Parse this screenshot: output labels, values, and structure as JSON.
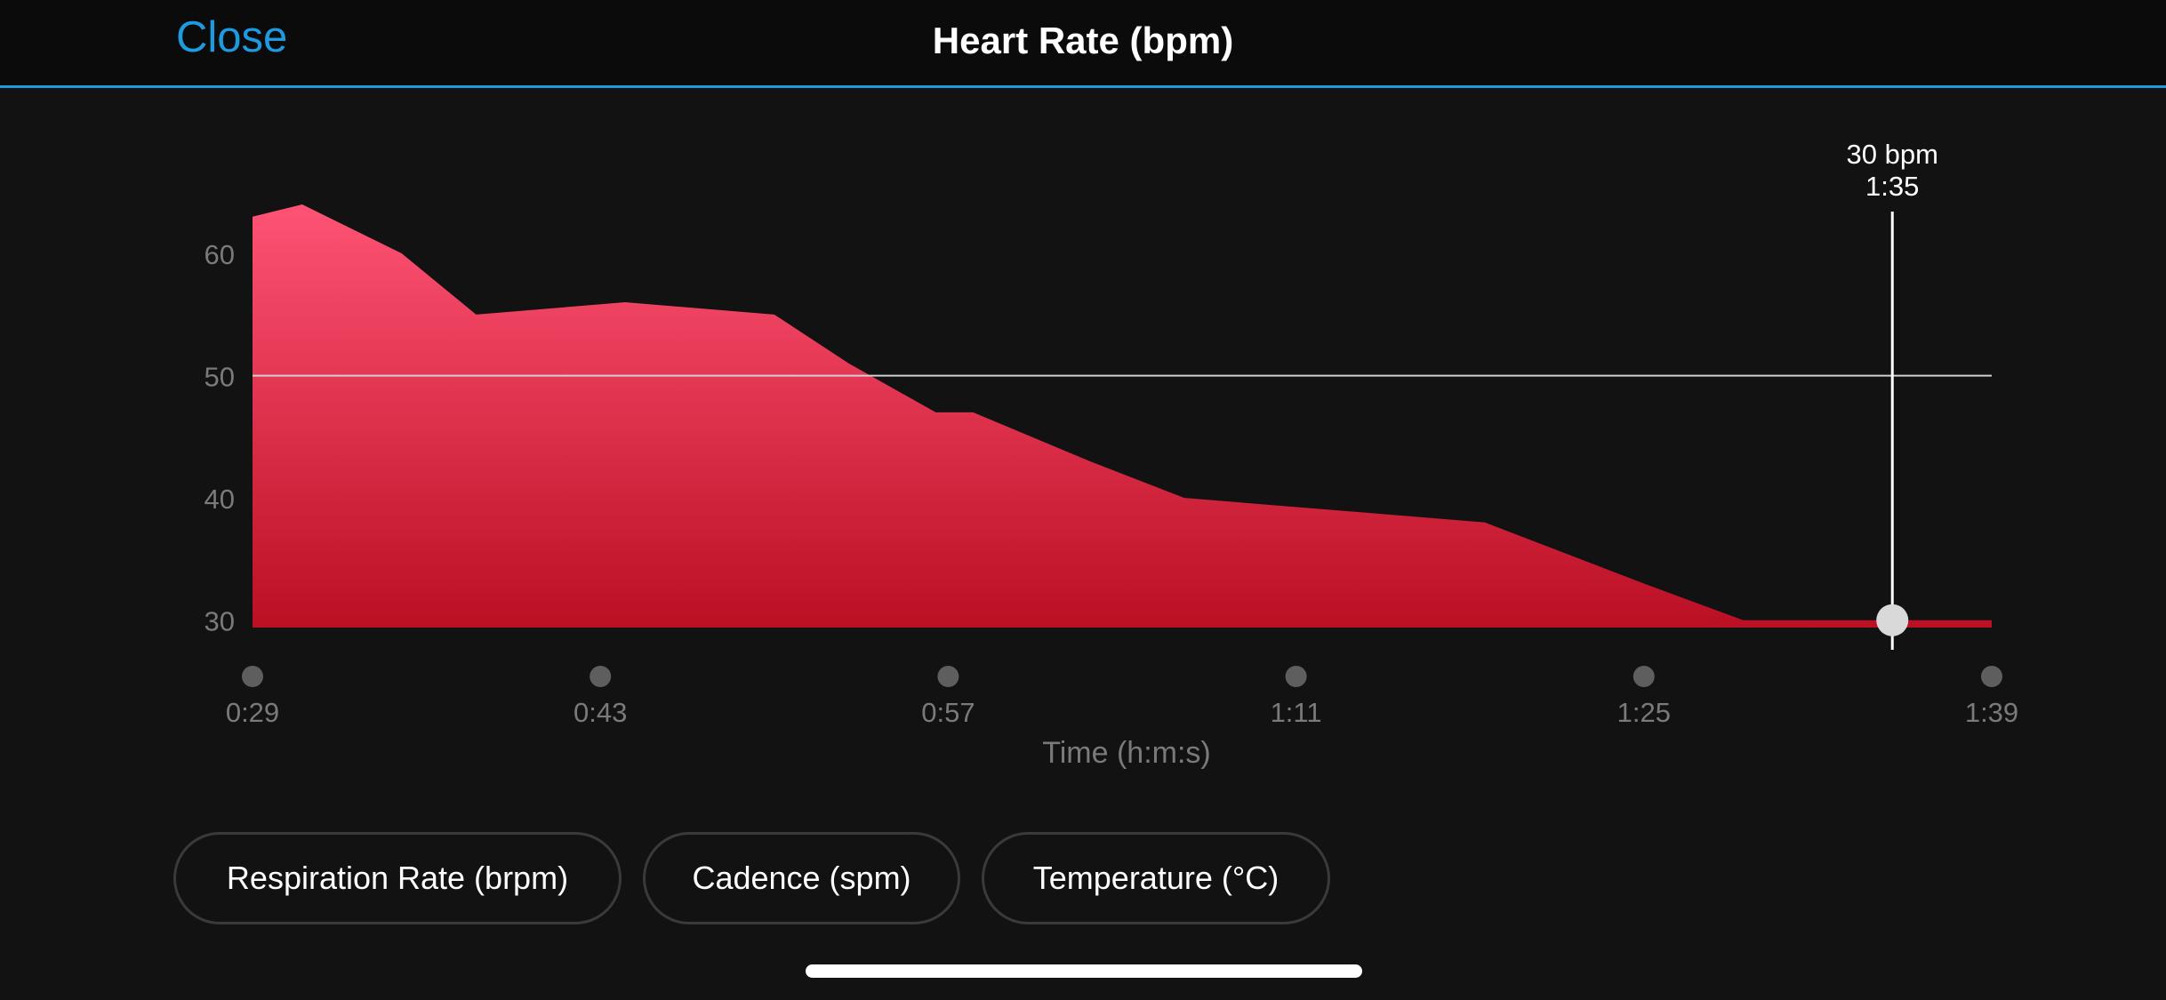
{
  "header": {
    "close_label": "Close",
    "title": "Heart Rate (bpm)"
  },
  "chart_data": {
    "type": "area",
    "title": "",
    "xlabel": "Time (h:m:s)",
    "ylabel": "",
    "x_ticks": [
      "0:29",
      "0:43",
      "0:57",
      "1:11",
      "1:25",
      "1:39"
    ],
    "y_ticks": [
      30,
      40,
      50,
      60
    ],
    "xlim": [
      29,
      99
    ],
    "ylim": [
      29.4,
      64
    ],
    "reference_line": 50,
    "series": [
      {
        "x": [
          29,
          31,
          35,
          38,
          44,
          50,
          53,
          56.5,
          58,
          62.7,
          66.5,
          78.6,
          85,
          89,
          99
        ],
        "y": [
          63,
          64,
          60,
          55,
          56,
          55,
          51,
          47,
          47,
          43,
          40,
          38,
          33,
          30,
          30
        ]
      }
    ],
    "cursor": {
      "value_label": "30 bpm",
      "time_label": "1:35",
      "x": 95,
      "y": 30
    },
    "colors": {
      "fill_top": "#ff5375",
      "fill_bottom": "#bb0f24",
      "accent": "#1e9be0"
    }
  },
  "metric_buttons": [
    {
      "label": "Respiration Rate (brpm)"
    },
    {
      "label": "Cadence (spm)"
    },
    {
      "label": "Temperature (°C)"
    }
  ]
}
